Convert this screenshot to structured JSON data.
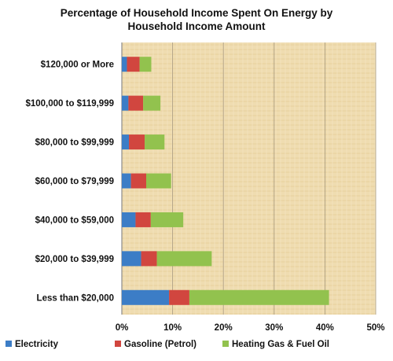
{
  "chart_data": {
    "type": "bar",
    "orientation": "horizontal",
    "stacked": true,
    "title": "Percentage of Household Income Spent On Energy by Household Income Amount",
    "title_lines": [
      "Percentage of Household Income Spent On Energy by",
      "Household Income Amount"
    ],
    "categories": [
      "$120,000 or More",
      "$100,000 to $119,999",
      "$80,000 to $99,999",
      "$60,000 to $79,999",
      "$40,000 to $59,000",
      "$20,000 to $39,999",
      "Less than $20,000"
    ],
    "series": [
      {
        "name": "Electricity",
        "color": "#3c7dc6",
        "values": [
          1.0,
          1.3,
          1.4,
          1.8,
          2.7,
          3.8,
          9.3
        ]
      },
      {
        "name": "Gasoline (Petrol)",
        "color": "#d1463f",
        "values": [
          2.5,
          2.9,
          3.1,
          3.0,
          3.0,
          3.1,
          4.0
        ]
      },
      {
        "name": "Heating Gas & Fuel Oil",
        "color": "#92c24e",
        "values": [
          2.3,
          3.4,
          3.9,
          4.9,
          6.4,
          10.8,
          27.5
        ]
      }
    ],
    "xlim": [
      0,
      50
    ],
    "x_ticks": [
      0,
      10,
      20,
      30,
      40,
      50
    ],
    "x_tick_labels": [
      "0%",
      "10%",
      "20%",
      "30%",
      "40%",
      "50%"
    ],
    "xlabel": "",
    "ylabel": "",
    "grid": "vertical",
    "legend_position": "bottom",
    "background": "#efdcb0",
    "gridline_color": "#a89a7e"
  }
}
